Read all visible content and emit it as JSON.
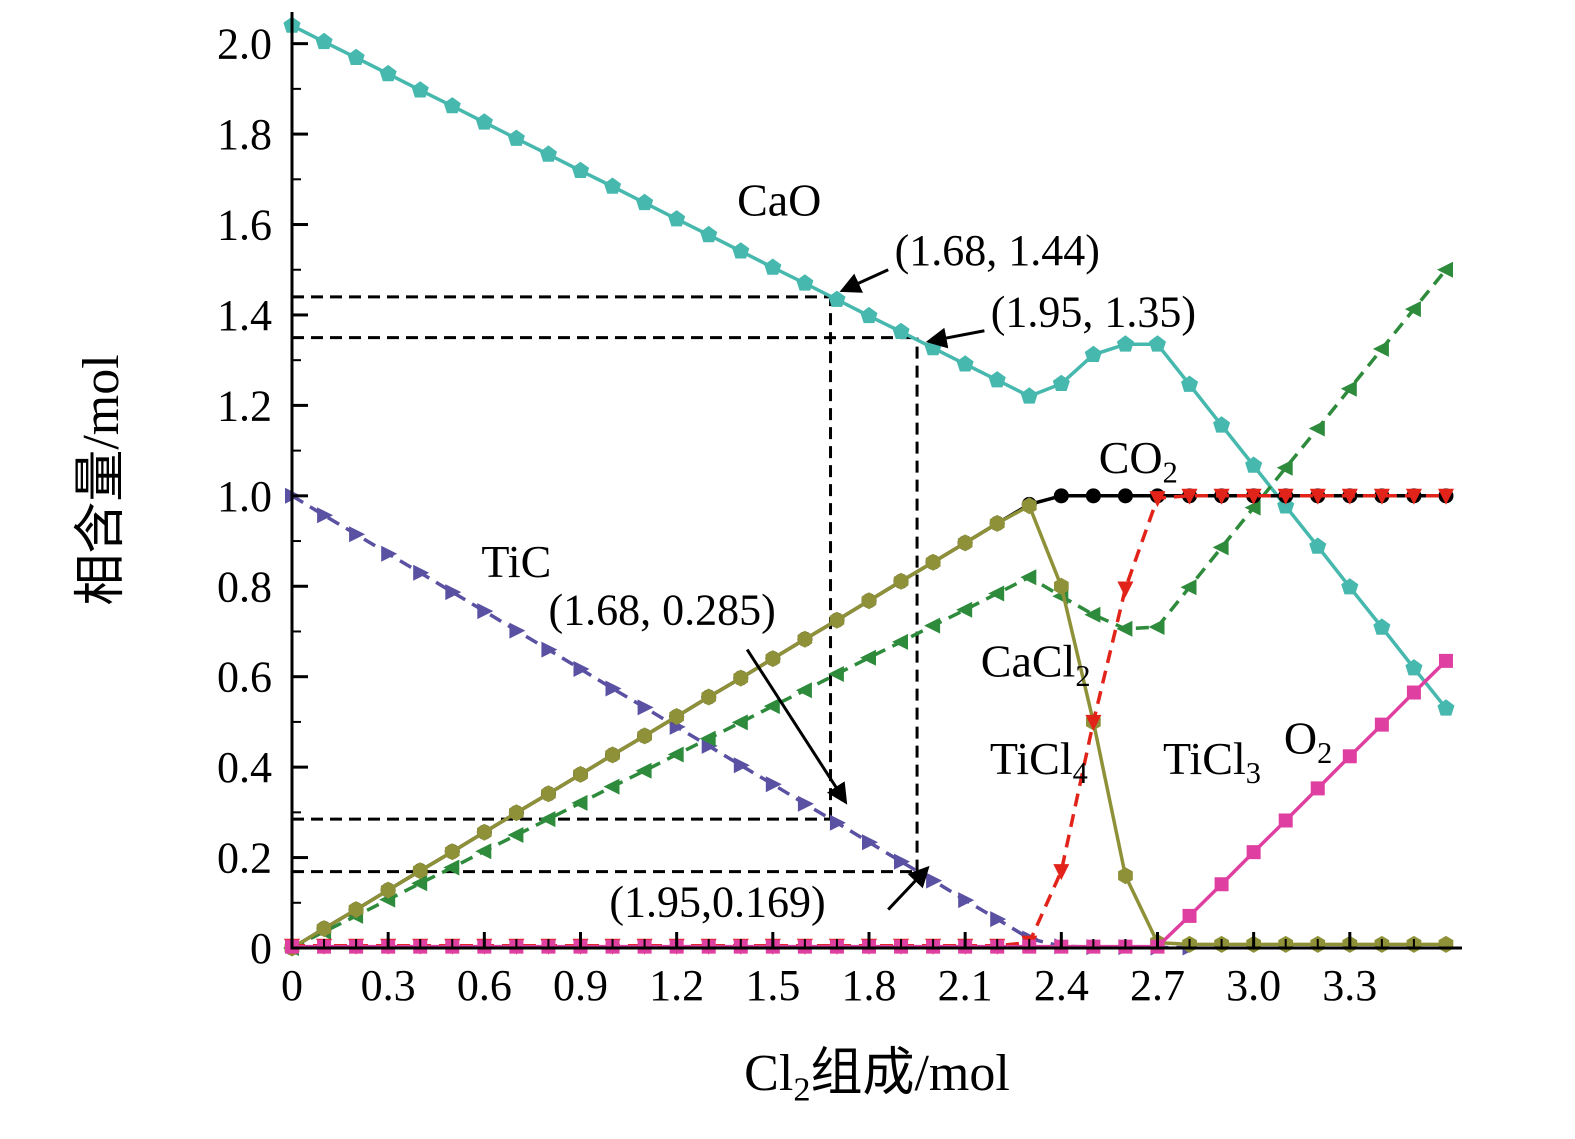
{
  "chart_data": {
    "type": "line",
    "title": "",
    "xlabel": "Cl_2组成/mol",
    "ylabel": "相含量/mol",
    "xlim": [
      0,
      3.65
    ],
    "ylim": [
      0,
      2.07
    ],
    "grid": false,
    "legend_position": "inline-labels",
    "x_ticks": [
      {
        "v": 0.0,
        "label": "0"
      },
      {
        "v": 0.3,
        "label": "0.3"
      },
      {
        "v": 0.6,
        "label": "0.6"
      },
      {
        "v": 0.9,
        "label": "0.9"
      },
      {
        "v": 1.2,
        "label": "1.2"
      },
      {
        "v": 1.5,
        "label": "1.5"
      },
      {
        "v": 1.8,
        "label": "1.8"
      },
      {
        "v": 2.1,
        "label": "2.1"
      },
      {
        "v": 2.4,
        "label": "2.4"
      },
      {
        "v": 2.7,
        "label": "2.7"
      },
      {
        "v": 3.0,
        "label": "3.0"
      },
      {
        "v": 3.3,
        "label": "3.3"
      }
    ],
    "y_ticks": [
      {
        "v": 0.0,
        "label": "0"
      },
      {
        "v": 0.2,
        "label": "0.2"
      },
      {
        "v": 0.4,
        "label": "0.4"
      },
      {
        "v": 0.6,
        "label": "0.6"
      },
      {
        "v": 0.8,
        "label": "0.8"
      },
      {
        "v": 1.0,
        "label": "1.0"
      },
      {
        "v": 1.2,
        "label": "1.2"
      },
      {
        "v": 1.4,
        "label": "1.4"
      },
      {
        "v": 1.6,
        "label": "1.6"
      },
      {
        "v": 1.8,
        "label": "1.8"
      },
      {
        "v": 2.0,
        "label": "2.0"
      }
    ],
    "x": [
      0,
      0.1,
      0.2,
      0.3,
      0.4,
      0.5,
      0.6,
      0.7,
      0.8,
      0.9,
      1.0,
      1.1,
      1.2,
      1.3,
      1.4,
      1.5,
      1.6,
      1.7,
      1.8,
      1.9,
      2.0,
      2.1,
      2.2,
      2.3,
      2.4,
      2.5,
      2.6,
      2.7,
      2.8,
      2.9,
      3.0,
      3.1,
      3.2,
      3.3,
      3.4,
      3.5,
      3.6
    ],
    "series": [
      {
        "id": "CaO",
        "label": "CaO",
        "color": "#46b8ae",
        "marker": "pentagon",
        "dash": "",
        "label_pos": [
          1.52,
          1.62
        ],
        "y": [
          2.04,
          2.004,
          1.969,
          1.933,
          1.897,
          1.862,
          1.826,
          1.79,
          1.755,
          1.719,
          1.684,
          1.648,
          1.612,
          1.577,
          1.541,
          1.505,
          1.47,
          1.434,
          1.398,
          1.363,
          1.327,
          1.291,
          1.256,
          1.22,
          1.248,
          1.312,
          1.335,
          1.335,
          1.246,
          1.156,
          1.067,
          0.977,
          0.888,
          0.798,
          0.709,
          0.619,
          0.53
        ]
      },
      {
        "id": "TiC",
        "label": "TiC",
        "color": "#5a51a2",
        "marker": "triangle-right",
        "dash": "13 8",
        "label_pos": [
          0.7,
          0.82
        ],
        "y": [
          1.0,
          0.957,
          0.915,
          0.872,
          0.83,
          0.787,
          0.745,
          0.702,
          0.66,
          0.617,
          0.574,
          0.532,
          0.489,
          0.447,
          0.404,
          0.362,
          0.319,
          0.277,
          0.234,
          0.191,
          0.149,
          0.106,
          0.064,
          0.021,
          0.004,
          0.002,
          0.002,
          0.001,
          0.001,
          null,
          null,
          null,
          null,
          null,
          null,
          null,
          null
        ]
      },
      {
        "id": "CaCl2",
        "label": "CaCl_2",
        "color": "#2e8b3c",
        "marker": "triangle-left",
        "dash": "13 8",
        "label_pos": [
          2.32,
          0.6
        ],
        "y": [
          0.0,
          0.036,
          0.071,
          0.107,
          0.143,
          0.178,
          0.214,
          0.25,
          0.285,
          0.321,
          0.357,
          0.392,
          0.428,
          0.463,
          0.499,
          0.535,
          0.57,
          0.606,
          0.642,
          0.677,
          0.713,
          0.748,
          0.784,
          0.82,
          0.778,
          0.737,
          0.706,
          0.71,
          0.798,
          0.886,
          0.974,
          1.062,
          1.149,
          1.237,
          1.325,
          1.413,
          1.5
        ]
      },
      {
        "id": "CO2",
        "label": "CO_2",
        "color": "#000000",
        "marker": "circle",
        "dash": "",
        "label_pos": [
          2.64,
          1.05
        ],
        "y": [
          0.0,
          0.043,
          0.085,
          0.128,
          0.171,
          0.213,
          0.256,
          0.299,
          0.341,
          0.384,
          0.427,
          0.469,
          0.512,
          0.555,
          0.597,
          0.64,
          0.683,
          0.725,
          0.768,
          0.811,
          0.853,
          0.896,
          0.939,
          0.981,
          1.0,
          1.0,
          1.0,
          1.0,
          1.0,
          1.0,
          1.0,
          1.0,
          1.0,
          1.0,
          1.0,
          1.0,
          1.0
        ]
      },
      {
        "id": "TiCl3",
        "label": "TiCl_3",
        "color": "#8e9138",
        "marker": "hexagon",
        "dash": "",
        "label_pos": [
          2.87,
          0.385
        ],
        "y": [
          0.0,
          0.043,
          0.085,
          0.128,
          0.171,
          0.213,
          0.256,
          0.299,
          0.341,
          0.384,
          0.427,
          0.469,
          0.512,
          0.555,
          0.597,
          0.64,
          0.683,
          0.725,
          0.768,
          0.811,
          0.853,
          0.896,
          0.939,
          0.978,
          0.8,
          0.5,
          0.16,
          0.012,
          0.008,
          0.008,
          0.008,
          0.008,
          0.008,
          0.008,
          0.008,
          0.008,
          0.008
        ]
      },
      {
        "id": "TiCl4",
        "label": "TiCl_4",
        "color": "#e2231a",
        "marker": "triangle-down",
        "dash": "13 8",
        "label_pos": [
          2.33,
          0.385
        ],
        "y": [
          0.005,
          0.005,
          0.005,
          0.005,
          0.005,
          0.005,
          0.005,
          0.005,
          0.005,
          0.005,
          0.005,
          0.005,
          0.005,
          0.005,
          0.005,
          0.005,
          0.005,
          0.005,
          0.005,
          0.005,
          0.005,
          0.005,
          0.005,
          0.012,
          0.17,
          0.5,
          0.795,
          0.995,
          1.0,
          1.0,
          1.0,
          1.0,
          1.0,
          1.0,
          1.0,
          1.0,
          1.0
        ]
      },
      {
        "id": "O2",
        "label": "O_2",
        "color": "#de3fa0",
        "marker": "square",
        "dash": "",
        "label_pos": [
          3.17,
          0.43
        ],
        "y": [
          0.003,
          0.003,
          0.003,
          0.003,
          0.003,
          0.003,
          0.003,
          0.003,
          0.003,
          0.003,
          0.003,
          0.003,
          0.003,
          0.003,
          0.003,
          0.003,
          0.003,
          0.003,
          0.003,
          0.003,
          0.003,
          0.003,
          0.003,
          0.003,
          0.003,
          0.003,
          0.003,
          0.003,
          0.071,
          0.141,
          0.212,
          0.282,
          0.353,
          0.424,
          0.494,
          0.565,
          0.635
        ]
      }
    ],
    "guides": [
      {
        "x1": 0,
        "y1": 1.44,
        "x2": 1.68,
        "y2": 1.44
      },
      {
        "x1": 1.68,
        "y1": 0.285,
        "x2": 1.68,
        "y2": 1.44
      },
      {
        "x1": 0,
        "y1": 1.35,
        "x2": 1.95,
        "y2": 1.35
      },
      {
        "x1": 1.95,
        "y1": 0.169,
        "x2": 1.95,
        "y2": 1.35
      },
      {
        "x1": 0,
        "y1": 0.285,
        "x2": 1.68,
        "y2": 0.285
      },
      {
        "x1": 0,
        "y1": 0.169,
        "x2": 1.95,
        "y2": 0.169
      }
    ],
    "annotations": [
      {
        "text": "(1.68, 1.44)",
        "text_pos": [
          1.88,
          1.51
        ],
        "anchor": "start",
        "arrow_from": [
          1.86,
          1.5
        ],
        "arrow_to": [
          1.72,
          1.455
        ]
      },
      {
        "text": "(1.95, 1.35)",
        "text_pos": [
          2.18,
          1.375
        ],
        "anchor": "start",
        "arrow_from": [
          2.16,
          1.365
        ],
        "arrow_to": [
          1.99,
          1.342
        ]
      },
      {
        "text": "(1.68, 0.285)",
        "text_pos": [
          0.8,
          0.715
        ],
        "anchor": "start",
        "arrow_from": [
          1.42,
          0.66
        ],
        "arrow_to": [
          1.725,
          0.325
        ]
      },
      {
        "text": "(1.95,0.169)",
        "text_pos": [
          0.99,
          0.07
        ],
        "anchor": "start",
        "arrow_from": [
          1.86,
          0.085
        ],
        "arrow_to": [
          1.98,
          0.175
        ]
      }
    ],
    "axis_color": "#000000"
  }
}
